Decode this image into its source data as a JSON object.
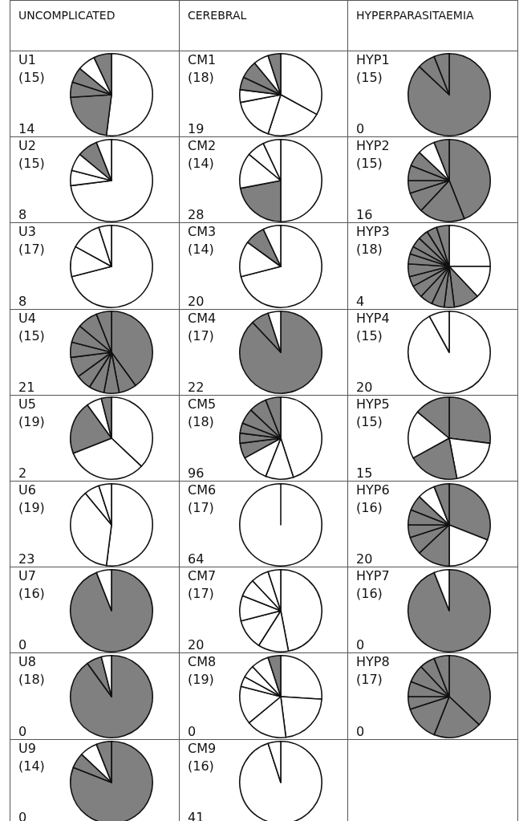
{
  "chart_data": [
    {
      "type": "other",
      "annotations": [
        "UNCOMPLICATED",
        "CEREBRAL",
        "HYPERPARASITAEMIA"
      ]
    },
    {
      "type": "pie",
      "title": "U1",
      "annotations": [
        "(15)",
        "14"
      ],
      "categories": [
        null,
        null,
        null,
        null,
        null,
        null
      ],
      "values": [
        52,
        22,
        6,
        6,
        7,
        7
      ],
      "colors": [
        "#ffffff",
        "#808080",
        "#808080",
        "#808080",
        "#ffffff",
        "#808080"
      ]
    },
    {
      "type": "pie",
      "title": "CM1",
      "annotations": [
        "(18)",
        "19"
      ],
      "categories": [
        null,
        null,
        null,
        null,
        null,
        null,
        null,
        null
      ],
      "values": [
        33,
        22,
        17,
        5,
        5,
        7,
        6,
        5
      ],
      "colors": [
        "#ffffff",
        "#ffffff",
        "#ffffff",
        "#ffffff",
        "#808080",
        "#808080",
        "#ffffff",
        "#808080"
      ]
    },
    {
      "type": "pie",
      "title": "HYP1",
      "annotations": [
        "(15)",
        "0"
      ],
      "categories": [
        null,
        null,
        null
      ],
      "values": [
        87,
        7,
        6
      ],
      "colors": [
        "#808080",
        "#808080",
        "#808080"
      ]
    },
    {
      "type": "pie",
      "title": "U2",
      "annotations": [
        "(15)",
        "8"
      ],
      "categories": [
        null,
        null,
        null,
        null,
        null
      ],
      "values": [
        73,
        6,
        7,
        8,
        6
      ],
      "colors": [
        "#ffffff",
        "#ffffff",
        "#ffffff",
        "#808080",
        "#ffffff"
      ]
    },
    {
      "type": "pie",
      "title": "CM2",
      "annotations": [
        "(14)",
        "28"
      ],
      "categories": [
        null,
        null,
        null,
        null,
        null
      ],
      "values": [
        50,
        22,
        14,
        7,
        7
      ],
      "colors": [
        "#ffffff",
        "#808080",
        "#ffffff",
        "#ffffff",
        "#ffffff"
      ]
    },
    {
      "type": "pie",
      "title": "HYP2",
      "annotations": [
        "(15)",
        "16"
      ],
      "categories": [
        null,
        null,
        null,
        null,
        null,
        null,
        null,
        null
      ],
      "values": [
        44,
        18,
        8,
        5,
        6,
        6,
        7,
        6
      ],
      "colors": [
        "#808080",
        "#808080",
        "#808080",
        "#808080",
        "#808080",
        "#808080",
        "#ffffff",
        "#808080"
      ]
    },
    {
      "type": "pie",
      "title": "U3",
      "annotations": [
        "(17)",
        "8"
      ],
      "categories": [
        null,
        null,
        null,
        null
      ],
      "values": [
        71,
        12,
        12,
        5
      ],
      "colors": [
        "#ffffff",
        "#ffffff",
        "#ffffff",
        "#ffffff"
      ]
    },
    {
      "type": "pie",
      "title": "CM3",
      "annotations": [
        "(14)",
        "20"
      ],
      "categories": [
        null,
        null,
        null,
        null
      ],
      "values": [
        71,
        14,
        8,
        7
      ],
      "colors": [
        "#ffffff",
        "#ffffff",
        "#808080",
        "#ffffff"
      ]
    },
    {
      "type": "pie",
      "title": "HYP3",
      "annotations": [
        "(18)",
        "4"
      ],
      "categories": [
        null,
        null,
        null,
        null,
        null,
        null,
        null,
        null,
        null,
        null,
        null,
        null,
        null,
        null,
        null
      ],
      "values": [
        25,
        13,
        10,
        4,
        5,
        5,
        5,
        4,
        5,
        4,
        3,
        4,
        4,
        4,
        5
      ],
      "colors": [
        "#ffffff",
        "#ffffff",
        "#808080",
        "#808080",
        "#808080",
        "#808080",
        "#808080",
        "#808080",
        "#808080",
        "#808080",
        "#808080",
        "#808080",
        "#808080",
        "#808080",
        "#808080"
      ]
    },
    {
      "type": "pie",
      "title": "U4",
      "annotations": [
        "(15)",
        "21"
      ],
      "categories": [
        null,
        null,
        null,
        null,
        null,
        null,
        null,
        null,
        null,
        null
      ],
      "values": [
        40,
        7,
        6,
        6,
        6,
        8,
        6,
        7,
        8,
        6
      ],
      "colors": [
        "#808080",
        "#808080",
        "#808080",
        "#808080",
        "#808080",
        "#808080",
        "#808080",
        "#808080",
        "#808080",
        "#808080"
      ]
    },
    {
      "type": "pie",
      "title": "CM4",
      "annotations": [
        "(17)",
        "22"
      ],
      "categories": [
        null,
        null,
        null
      ],
      "values": [
        88,
        7,
        5
      ],
      "colors": [
        "#808080",
        "#808080",
        "#ffffff"
      ]
    },
    {
      "type": "pie",
      "title": "HYP4",
      "annotations": [
        "(15)",
        "20"
      ],
      "categories": [
        null,
        null
      ],
      "values": [
        92,
        8
      ],
      "colors": [
        "#ffffff",
        "#ffffff"
      ]
    },
    {
      "type": "pie",
      "title": "U5",
      "annotations": [
        "(19)",
        "2"
      ],
      "categories": [
        null,
        null,
        null,
        null,
        null
      ],
      "values": [
        37,
        32,
        21,
        6,
        4
      ],
      "colors": [
        "#ffffff",
        "#ffffff",
        "#808080",
        "#ffffff",
        "#808080"
      ]
    },
    {
      "type": "pie",
      "title": "CM5",
      "annotations": [
        "(18)",
        "96"
      ],
      "categories": [
        null,
        null,
        null,
        null,
        null,
        null,
        null,
        null,
        null
      ],
      "values": [
        45,
        11,
        11,
        6,
        4,
        4,
        6,
        7,
        6
      ],
      "colors": [
        "#ffffff",
        "#ffffff",
        "#ffffff",
        "#808080",
        "#808080",
        "#808080",
        "#808080",
        "#808080",
        "#808080"
      ]
    },
    {
      "type": "pie",
      "title": "HYP5",
      "annotations": [
        "(15)",
        "15"
      ],
      "categories": [
        null,
        null,
        null,
        null,
        null
      ],
      "values": [
        27,
        20,
        20,
        19,
        14
      ],
      "colors": [
        "#808080",
        "#ffffff",
        "#808080",
        "#ffffff",
        "#808080"
      ]
    },
    {
      "type": "pie",
      "title": "U6",
      "annotations": [
        "(19)",
        "23"
      ],
      "categories": [
        null,
        null,
        null,
        null
      ],
      "values": [
        52,
        37,
        6,
        5
      ],
      "colors": [
        "#ffffff",
        "#ffffff",
        "#ffffff",
        "#ffffff"
      ]
    },
    {
      "type": "pie",
      "title": "CM6",
      "annotations": [
        "(17)",
        "64"
      ],
      "categories": [
        null
      ],
      "values": [
        100
      ],
      "colors": [
        "#ffffff"
      ]
    },
    {
      "type": "pie",
      "title": "HYP6",
      "annotations": [
        "(16)",
        "20"
      ],
      "categories": [
        null,
        null,
        null,
        null,
        null,
        null,
        null,
        null,
        null
      ],
      "values": [
        31,
        19,
        13,
        7,
        5,
        6,
        6,
        7,
        6
      ],
      "colors": [
        "#808080",
        "#ffffff",
        "#808080",
        "#808080",
        "#808080",
        "#808080",
        "#808080",
        "#ffffff",
        "#808080"
      ]
    },
    {
      "type": "pie",
      "title": "U7",
      "annotations": [
        "(16)",
        "0"
      ],
      "categories": [
        null,
        null
      ],
      "values": [
        94,
        6
      ],
      "colors": [
        "#808080",
        "#ffffff"
      ]
    },
    {
      "type": "pie",
      "title": "CM7",
      "annotations": [
        "(17)",
        "20"
      ],
      "categories": [
        null,
        null,
        null,
        null,
        null,
        null,
        null
      ],
      "values": [
        47,
        12,
        12,
        10,
        7,
        7,
        5
      ],
      "colors": [
        "#ffffff",
        "#ffffff",
        "#ffffff",
        "#ffffff",
        "#ffffff",
        "#ffffff",
        "#ffffff"
      ]
    },
    {
      "type": "pie",
      "title": "HYP7",
      "annotations": [
        "(16)",
        "0"
      ],
      "categories": [
        null,
        null
      ],
      "values": [
        94,
        6
      ],
      "colors": [
        "#808080",
        "#ffffff"
      ]
    },
    {
      "type": "pie",
      "title": "U8",
      "annotations": [
        "(18)",
        "0"
      ],
      "categories": [
        null,
        null,
        null
      ],
      "values": [
        90,
        6,
        4
      ],
      "colors": [
        "#808080",
        "#808080",
        "#ffffff"
      ]
    },
    {
      "type": "pie",
      "title": "CM8",
      "annotations": [
        "(19)",
        "0"
      ],
      "categories": [
        null,
        null,
        null,
        null,
        null,
        null,
        null,
        null
      ],
      "values": [
        26,
        22,
        16,
        15,
        4,
        5,
        7,
        5
      ],
      "colors": [
        "#ffffff",
        "#ffffff",
        "#ffffff",
        "#ffffff",
        "#ffffff",
        "#ffffff",
        "#ffffff",
        "#808080"
      ]
    },
    {
      "type": "pie",
      "title": "HYP8",
      "annotations": [
        "(17)",
        "0"
      ],
      "categories": [
        null,
        null,
        null,
        null,
        null,
        null,
        null,
        null
      ],
      "values": [
        37,
        19,
        14,
        5,
        6,
        7,
        6,
        6
      ],
      "colors": [
        "#808080",
        "#808080",
        "#808080",
        "#808080",
        "#808080",
        "#808080",
        "#808080",
        "#808080"
      ]
    },
    {
      "type": "pie",
      "title": "U9",
      "annotations": [
        "(14)",
        "0"
      ],
      "categories": [
        null,
        null,
        null,
        null
      ],
      "values": [
        81,
        6,
        7,
        6
      ],
      "colors": [
        "#808080",
        "#808080",
        "#ffffff",
        "#808080"
      ]
    },
    {
      "type": "pie",
      "title": "CM9",
      "annotations": [
        "(16)",
        "41"
      ],
      "categories": [
        null,
        null
      ],
      "values": [
        95,
        5
      ],
      "colors": [
        "#ffffff",
        "#ffffff"
      ]
    }
  ]
}
